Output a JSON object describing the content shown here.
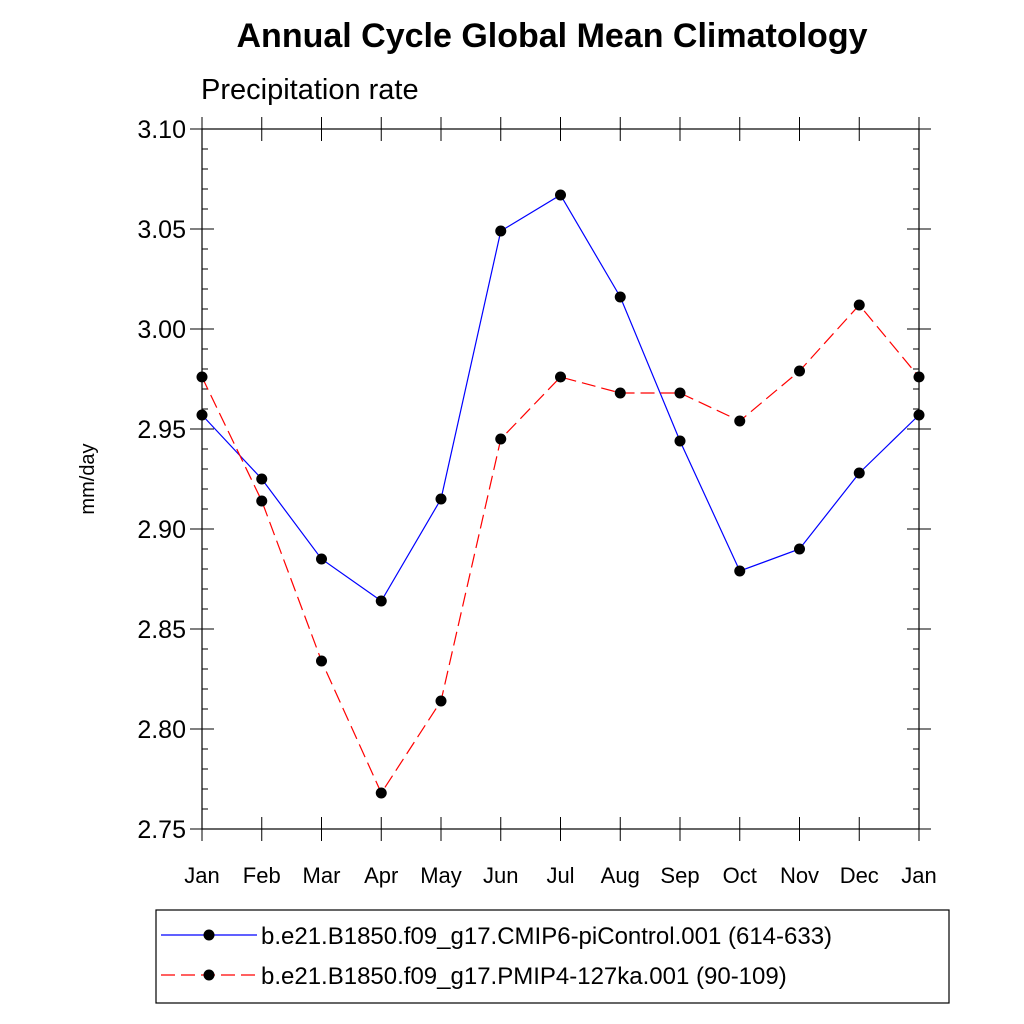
{
  "chart_data": {
    "type": "line",
    "title": "Annual Cycle Global Mean Climatology",
    "subtitle": "Precipitation rate",
    "ylabel": "mm/day",
    "xlabel": "",
    "ylim": [
      2.75,
      3.1
    ],
    "yticks": [
      "2.75",
      "2.80",
      "2.85",
      "2.90",
      "2.95",
      "3.00",
      "3.05",
      "3.10"
    ],
    "categories": [
      "Jan",
      "Feb",
      "Mar",
      "Apr",
      "May",
      "Jun",
      "Jul",
      "Aug",
      "Sep",
      "Oct",
      "Nov",
      "Dec",
      "Jan"
    ],
    "series": [
      {
        "name": "b.e21.B1850.f09_g17.CMIP6-piControl.001 (614-633)",
        "color": "#0000ff",
        "dash": "solid",
        "values": [
          2.957,
          2.925,
          2.885,
          2.864,
          2.915,
          3.049,
          3.067,
          3.016,
          2.944,
          2.879,
          2.89,
          2.928,
          2.957
        ]
      },
      {
        "name": "b.e21.B1850.f09_g17.PMIP4-127ka.001 (90-109)",
        "color": "#ff0000",
        "dash": "dashed",
        "values": [
          2.976,
          2.914,
          2.834,
          2.768,
          2.814,
          2.945,
          2.976,
          2.968,
          2.968,
          2.954,
          2.979,
          3.012,
          2.976
        ]
      }
    ],
    "legend_position": "bottom"
  }
}
